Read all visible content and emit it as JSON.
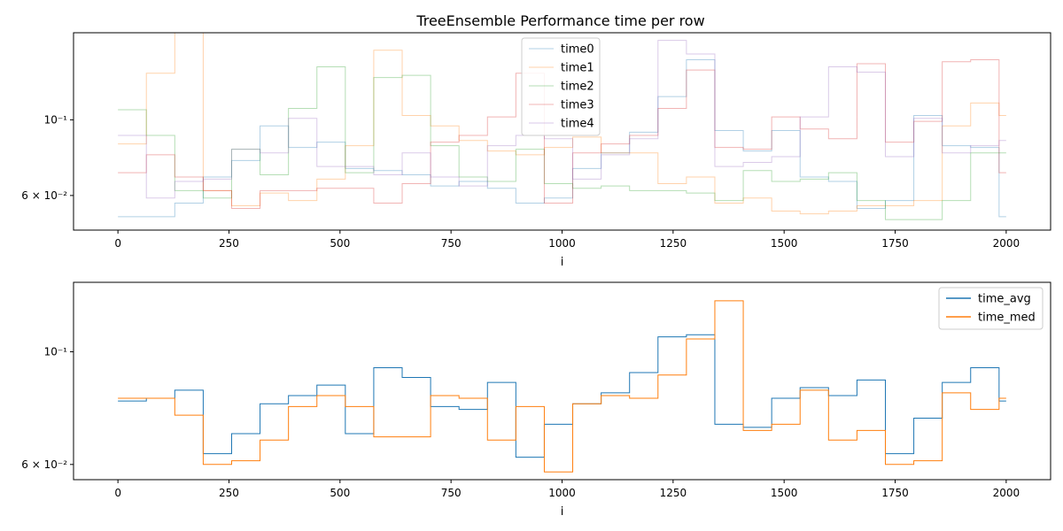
{
  "chart_data": [
    {
      "type": "line",
      "step": true,
      "title": "TreeEnsemble Performance time per row",
      "xlabel": "i",
      "ylabel": "",
      "yscale": "log",
      "xlim": [
        -100,
        2100
      ],
      "ylim": [
        0.0475,
        0.18
      ],
      "xticks": [
        0,
        250,
        500,
        750,
        1000,
        1250,
        1500,
        1750,
        2000
      ],
      "yticks": [
        {
          "value": 0.06,
          "label": "6 × 10⁻²"
        },
        {
          "value": 0.1,
          "label": "10⁻¹"
        }
      ],
      "legend_position": "top-center",
      "line_opacity": 0.35,
      "x": [
        0,
        64,
        128,
        192,
        256,
        320,
        384,
        448,
        512,
        576,
        640,
        704,
        768,
        832,
        896,
        960,
        1024,
        1088,
        1152,
        1216,
        1280,
        1344,
        1408,
        1472,
        1536,
        1600,
        1664,
        1728,
        1792,
        1856,
        1920,
        1984,
        2000
      ],
      "series": [
        {
          "name": "time0",
          "color": "#1f77b4",
          "values": [
            0.052,
            0.052,
            0.057,
            0.068,
            0.076,
            0.096,
            0.083,
            0.086,
            0.072,
            0.071,
            0.069,
            0.064,
            0.066,
            0.063,
            0.057,
            0.059,
            0.072,
            0.08,
            0.092,
            0.117,
            0.15,
            0.093,
            0.081,
            0.093,
            0.068,
            0.066,
            0.055,
            0.058,
            0.103,
            0.084,
            0.083,
            0.052,
            0.052
          ]
        },
        {
          "name": "time1",
          "color": "#ff7f0e",
          "values": [
            0.085,
            0.137,
            0.18,
            0.062,
            0.056,
            0.061,
            0.058,
            0.067,
            0.084,
            0.16,
            0.103,
            0.096,
            0.087,
            0.081,
            0.079,
            0.083,
            0.089,
            0.08,
            0.08,
            0.065,
            0.068,
            0.057,
            0.059,
            0.054,
            0.053,
            0.054,
            0.056,
            0.056,
            0.058,
            0.096,
            0.112,
            0.103,
            0.103
          ]
        },
        {
          "name": "time2",
          "color": "#2ca02c",
          "values": [
            0.107,
            0.09,
            0.062,
            0.059,
            0.082,
            0.069,
            0.108,
            0.143,
            0.07,
            0.133,
            0.135,
            0.084,
            0.068,
            0.066,
            0.082,
            0.065,
            0.063,
            0.064,
            0.062,
            0.062,
            0.061,
            0.058,
            0.071,
            0.066,
            0.067,
            0.07,
            0.058,
            0.051,
            0.051,
            0.058,
            0.08,
            0.08,
            0.08
          ]
        },
        {
          "name": "time3",
          "color": "#d62728",
          "values": [
            0.07,
            0.079,
            0.068,
            0.062,
            0.055,
            0.062,
            0.062,
            0.063,
            0.063,
            0.057,
            0.065,
            0.086,
            0.09,
            0.102,
            0.137,
            0.057,
            0.08,
            0.085,
            0.09,
            0.108,
            0.14,
            0.083,
            0.082,
            0.102,
            0.094,
            0.088,
            0.146,
            0.086,
            0.099,
            0.148,
            0.15,
            0.07,
            0.07
          ]
        },
        {
          "name": "time4",
          "color": "#9467bd",
          "values": [
            0.09,
            0.059,
            0.066,
            0.067,
            0.082,
            0.08,
            0.101,
            0.073,
            0.073,
            0.069,
            0.08,
            0.068,
            0.064,
            0.084,
            0.09,
            0.088,
            0.067,
            0.079,
            0.088,
            0.171,
            0.156,
            0.073,
            0.075,
            0.078,
            0.102,
            0.143,
            0.138,
            0.078,
            0.101,
            0.08,
            0.084,
            0.087,
            0.087
          ]
        }
      ]
    },
    {
      "type": "line",
      "step": true,
      "title": "",
      "xlabel": "i",
      "ylabel": "",
      "yscale": "log",
      "xlim": [
        -100,
        2100
      ],
      "ylim": [
        0.056,
        0.137
      ],
      "xticks": [
        0,
        250,
        500,
        750,
        1000,
        1250,
        1500,
        1750,
        2000
      ],
      "yticks": [
        {
          "value": 0.06,
          "label": "6 × 10⁻²"
        },
        {
          "value": 0.1,
          "label": "10⁻¹"
        }
      ],
      "legend_position": "top-right",
      "line_opacity": 1,
      "x": [
        0,
        64,
        128,
        192,
        256,
        320,
        384,
        448,
        512,
        576,
        640,
        704,
        768,
        832,
        896,
        960,
        1024,
        1088,
        1152,
        1216,
        1280,
        1344,
        1408,
        1472,
        1536,
        1600,
        1664,
        1728,
        1792,
        1856,
        1920,
        1984,
        2000
      ],
      "series": [
        {
          "name": "time_avg",
          "color": "#1f77b4",
          "values": [
            0.08,
            0.081,
            0.084,
            0.063,
            0.069,
            0.079,
            0.082,
            0.086,
            0.069,
            0.093,
            0.089,
            0.078,
            0.077,
            0.087,
            0.062,
            0.072,
            0.079,
            0.083,
            0.091,
            0.107,
            0.108,
            0.072,
            0.071,
            0.081,
            0.085,
            0.082,
            0.088,
            0.063,
            0.074,
            0.087,
            0.093,
            0.08,
            0.08
          ]
        },
        {
          "name": "time_med",
          "color": "#ff7f0e",
          "values": [
            0.081,
            0.081,
            0.075,
            0.06,
            0.061,
            0.067,
            0.078,
            0.082,
            0.078,
            0.068,
            0.068,
            0.082,
            0.081,
            0.067,
            0.078,
            0.058,
            0.079,
            0.082,
            0.081,
            0.09,
            0.106,
            0.126,
            0.07,
            0.072,
            0.084,
            0.067,
            0.07,
            0.06,
            0.061,
            0.083,
            0.077,
            0.081,
            0.081
          ]
        }
      ]
    }
  ]
}
